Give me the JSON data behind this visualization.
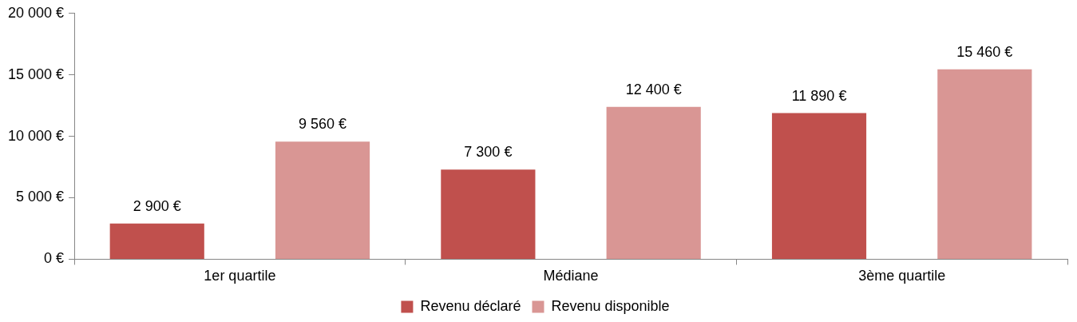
{
  "chart_data": {
    "type": "bar",
    "categories": [
      "1er quartile",
      "Médiane",
      "3ème quartile"
    ],
    "series": [
      {
        "name": "Revenu déclaré",
        "color": "#c0504d",
        "values": [
          2900,
          7300,
          11890
        ],
        "value_labels": [
          "2 900 €",
          "7 300 €",
          "11 890 €"
        ]
      },
      {
        "name": "Revenu disponible",
        "color": "#d99694",
        "values": [
          9560,
          12400,
          15460
        ],
        "value_labels": [
          "9 560 €",
          "12 400 €",
          "15 460 €"
        ]
      }
    ],
    "ylim": [
      0,
      20000
    ],
    "yticks": [
      {
        "value": 0,
        "label": "0 €"
      },
      {
        "value": 5000,
        "label": "5 000 €"
      },
      {
        "value": 10000,
        "label": "10 000 €"
      },
      {
        "value": 15000,
        "label": "15 000 €"
      },
      {
        "value": 20000,
        "label": "20 000 €"
      }
    ],
    "grid": false,
    "legend": "bottom"
  }
}
